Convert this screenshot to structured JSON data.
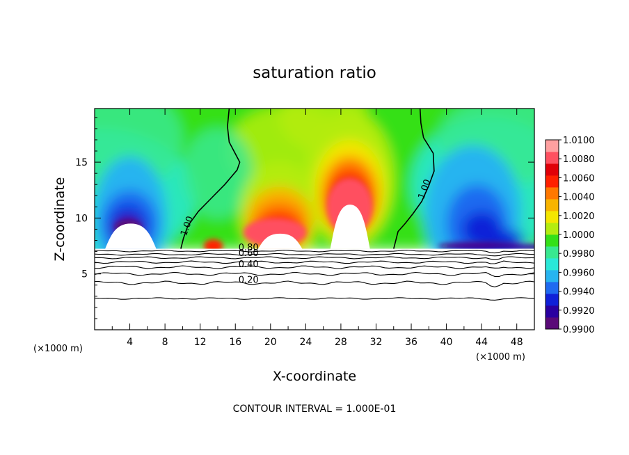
{
  "chart_data": {
    "type": "heatmap",
    "title": "saturation ratio",
    "xlabel": "X-coordinate",
    "ylabel": "Z-coordinate",
    "x_unit_left": "(×1000 m)",
    "x_unit_right": "(×1000 m)",
    "footer": "CONTOUR INTERVAL = 1.000E-01",
    "xlim": [
      0,
      50
    ],
    "ylim": [
      0,
      19.8
    ],
    "x_ticks": [
      4,
      8,
      12,
      16,
      20,
      24,
      28,
      32,
      36,
      40,
      44,
      48
    ],
    "x_tick_labels": [
      "4",
      "8",
      "12",
      "16",
      "20",
      "24",
      "28",
      "32",
      "36",
      "40",
      "44",
      "48"
    ],
    "y_ticks": [
      5,
      10,
      15
    ],
    "y_tick_labels": [
      "5",
      "10",
      "15"
    ],
    "colorbar": {
      "range": [
        0.99,
        1.01
      ],
      "tick_labels": [
        "1.0100",
        "1.0080",
        "1.0060",
        "1.0040",
        "1.0020",
        "1.0000",
        "0.9980",
        "0.9960",
        "0.9940",
        "0.9920",
        "0.9900"
      ],
      "colors": [
        "#5a0a78",
        "#2a00a0",
        "#1020d8",
        "#1f6af0",
        "#27b4f0",
        "#2ae8d8",
        "#38e890",
        "#34e018",
        "#b4ec10",
        "#f4e600",
        "#f8b400",
        "#ff7800",
        "#ff2000",
        "#e00008",
        "#ff5060",
        "#ffa0a0"
      ]
    },
    "contour_labels": [
      {
        "text": "1.00",
        "x": 10.8,
        "z": 9.2
      },
      {
        "text": "1.00",
        "x": 37.8,
        "z": 12.5
      },
      {
        "text": "0.80",
        "x": 17.5,
        "z": 7.1
      },
      {
        "text": "0.60",
        "x": 17.5,
        "z": 6.6
      },
      {
        "text": "0.40",
        "x": 17.5,
        "z": 5.6
      },
      {
        "text": "0.20",
        "x": 17.5,
        "z": 4.2
      }
    ],
    "saturation_peaks": [
      {
        "x": 20.5,
        "z": 9.8,
        "value": 1.0065
      },
      {
        "x": 29.0,
        "z": 12.0,
        "value": 1.007
      },
      {
        "x": 13.5,
        "z": 7.8,
        "value": 1.006
      },
      {
        "x": 3.8,
        "z": 9.8,
        "value": 0.9905
      },
      {
        "x": 43.5,
        "z": 9.5,
        "value": 0.9915
      }
    ],
    "grid": false
  }
}
